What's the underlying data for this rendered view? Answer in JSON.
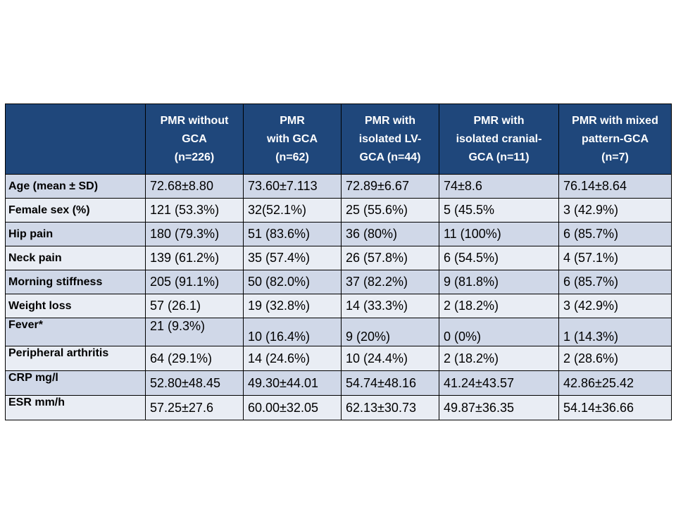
{
  "table": {
    "headers": [
      "",
      "PMR without GCA (n=226)",
      "PMR with GCA (n=62)",
      "PMR with isolated LV-GCA (n=44)",
      "PMR with isolated cranial-GCA (n=11)",
      "PMR with mixed pattern-GCA (n=7)"
    ],
    "header_lines": [
      [],
      [
        "PMR without",
        "GCA",
        "(n=226)"
      ],
      [
        "PMR",
        "with GCA",
        "(n=62)"
      ],
      [
        "PMR with",
        "isolated LV-",
        "GCA (n=44)"
      ],
      [
        "PMR with",
        "isolated cranial-",
        "GCA (n=11)"
      ],
      [
        "PMR with mixed",
        "pattern-GCA",
        "(n=7)"
      ]
    ],
    "rows": [
      {
        "label": "Age (mean ± SD)",
        "cells": [
          "72.68±8.80",
          "73.60±7.113",
          "72.89±6.67",
          "74±8.6",
          "76.14±8.64"
        ]
      },
      {
        "label": "Female sex (%)",
        "cells": [
          "121 (53.3%)",
          "32(52.1%)",
          "25 (55.6%)",
          "5 (45.5%",
          "3 (42.9%)"
        ]
      },
      {
        "label": "Hip pain",
        "cells": [
          "180 (79.3%)",
          "51 (83.6%)",
          "36 (80%)",
          "11 (100%)",
          "6 (85.7%)"
        ]
      },
      {
        "label": "Neck pain",
        "cells": [
          "139 (61.2%)",
          "35 (57.4%)",
          "26 (57.8%)",
          "6 (54.5%)",
          "4 (57.1%)"
        ]
      },
      {
        "label": "Morning stiffness",
        "cells": [
          "205 (91.1%)",
          "50 (82.0%)",
          "37 (82.2%)",
          "9 (81.8%)",
          "6 (85.7%)"
        ]
      },
      {
        "label": "Weight loss",
        "cells": [
          "57 (26.1)",
          "19 (32.8%)",
          "14 (33.3%)",
          "2 (18.2%)",
          "3 (42.9%)"
        ]
      },
      {
        "label": "Fever*",
        "cells": [
          "21 (9.3%)",
          "10 (16.4%)",
          "9 (20%)",
          "0 (0%)",
          "1 (14.3%)"
        ]
      },
      {
        "label": "Peripheral arthritis",
        "cells": [
          "64 (29.1%)",
          "14 (24.6%)",
          "10 (24.4%)",
          "2 (18.2%)",
          "2 (28.6%)"
        ]
      },
      {
        "label": "CRP mg/l",
        "cells": [
          "52.80±48.45",
          "49.30±44.01",
          "54.74±48.16",
          "41.24±43.57",
          "42.86±25.42"
        ]
      },
      {
        "label": "ESR mm/h",
        "cells": [
          "57.25±27.6",
          "60.00±32.05",
          "62.13±30.73",
          "49.87±36.35",
          "54.14±36.66"
        ]
      }
    ]
  },
  "colors": {
    "header_bg": "#1f477b",
    "row_shade": "#d0d8e8",
    "row_plain": "#e9edf4"
  }
}
